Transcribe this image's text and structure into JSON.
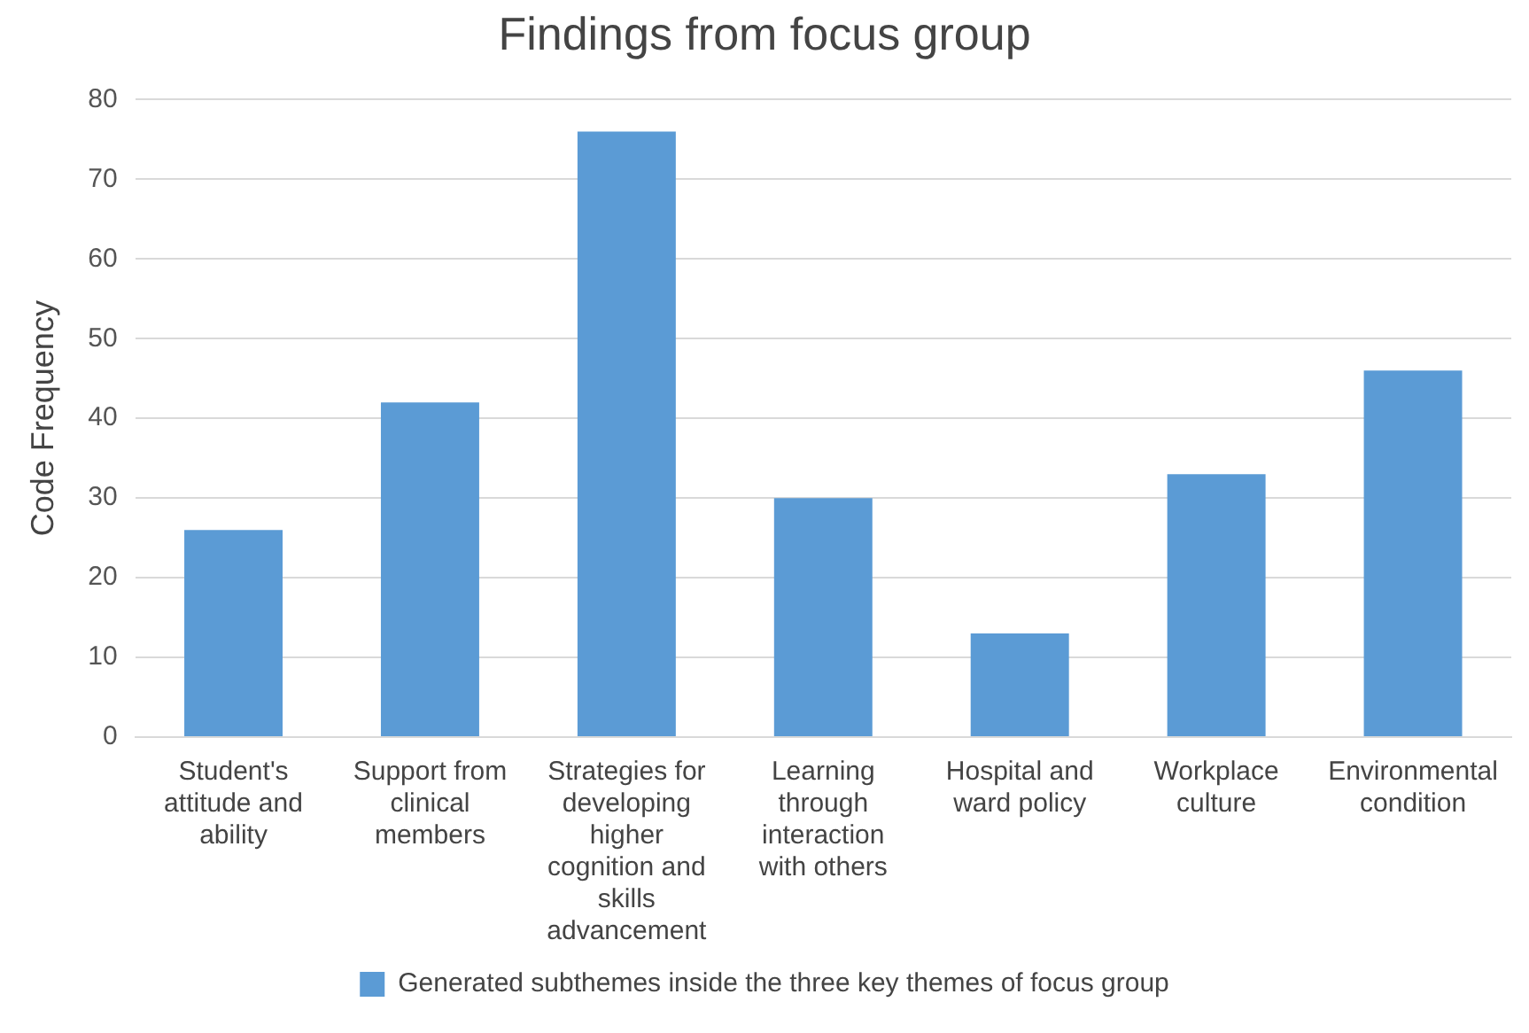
{
  "chart_data": {
    "type": "bar",
    "title": "Findings from focus group",
    "ylabel": "Code Frequency",
    "categories": [
      "Student's attitude and ability",
      "Support from clinical members",
      "Strategies for developing higher cognition and skills advancement",
      "Learning through interaction with others",
      "Hospital and ward policy",
      "Workplace culture",
      "Environmental condition"
    ],
    "series": [
      {
        "name": "Generated subthemes inside the three key themes of focus group",
        "color": "#5b9bd5",
        "values": [
          26,
          42,
          76,
          30,
          13,
          33,
          46
        ]
      }
    ],
    "ylim": [
      0,
      80
    ],
    "yticks": [
      0,
      10,
      20,
      30,
      40,
      50,
      60,
      70,
      80
    ],
    "grid": "y",
    "legend": "bottom"
  }
}
